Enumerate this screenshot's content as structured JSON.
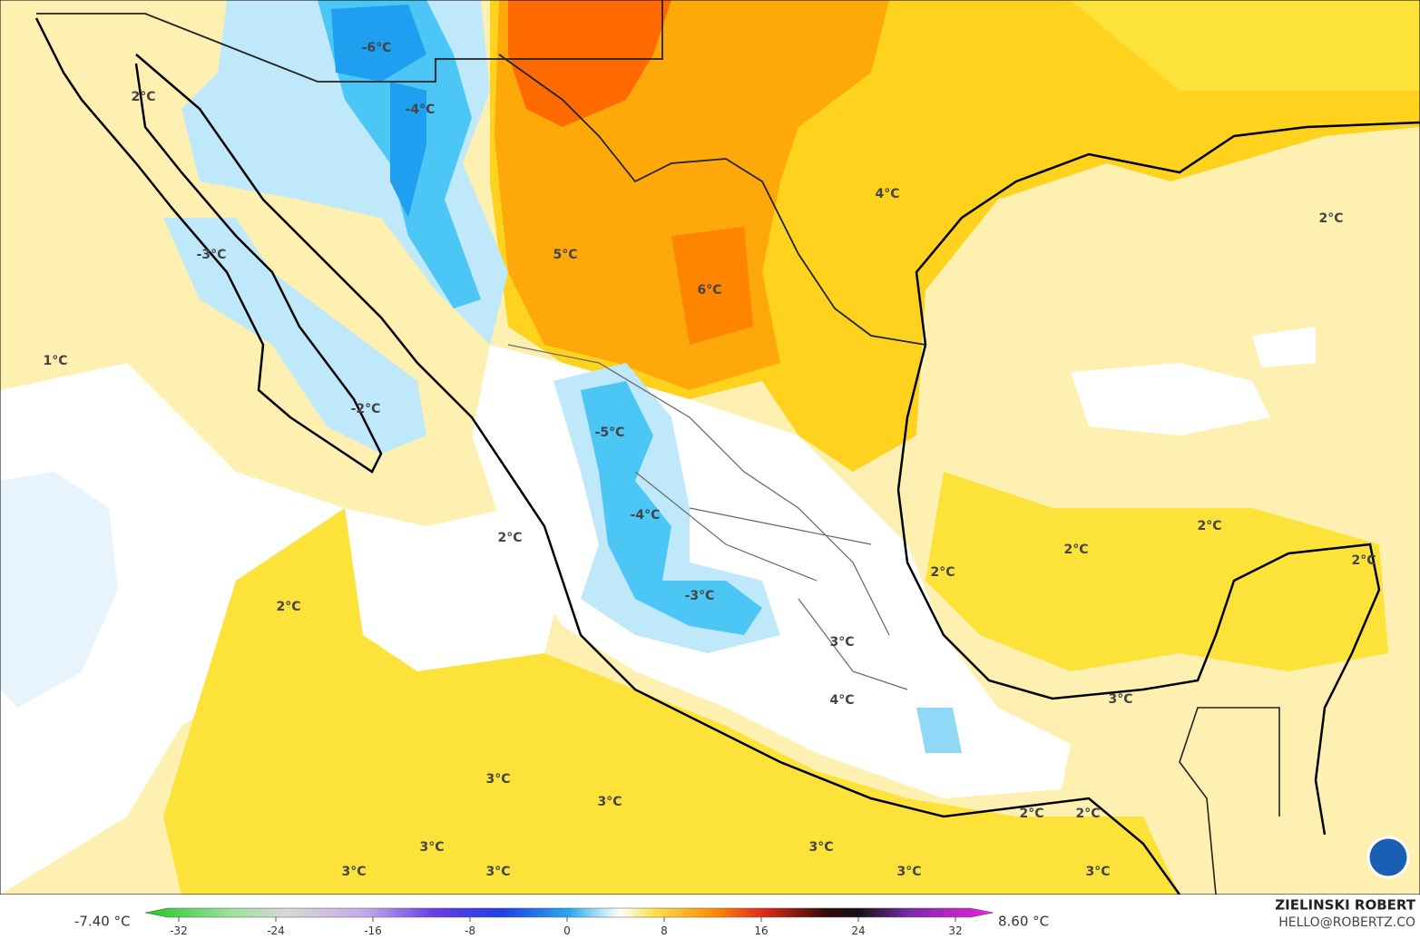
{
  "map": {
    "labels": [
      "-6°C",
      "2°C",
      "-4°C",
      "4°C",
      "2°C",
      "-3°C",
      "5°C",
      "6°C",
      "1°C",
      "-2°C",
      "-5°C",
      "-4°C",
      "2°C",
      "2°C",
      "2°C",
      "2°C",
      "2°C",
      "-3°C",
      "2°C",
      "3°C",
      "4°C",
      "3°C",
      "3°C",
      "3°C",
      "2°C",
      "2°C",
      "3°C",
      "3°C",
      "3°C",
      "3°C",
      "3°C",
      "3°C"
    ]
  },
  "legend": {
    "min_label": "-7.40 °C",
    "max_label": "8.60 °C",
    "ticks": [
      -32,
      -24,
      -16,
      -8,
      0,
      8,
      16,
      24,
      32
    ]
  },
  "credit": {
    "name": "ZIELINSKI ROBERT",
    "email": "HELLO@ROBERTZ.CO"
  }
}
